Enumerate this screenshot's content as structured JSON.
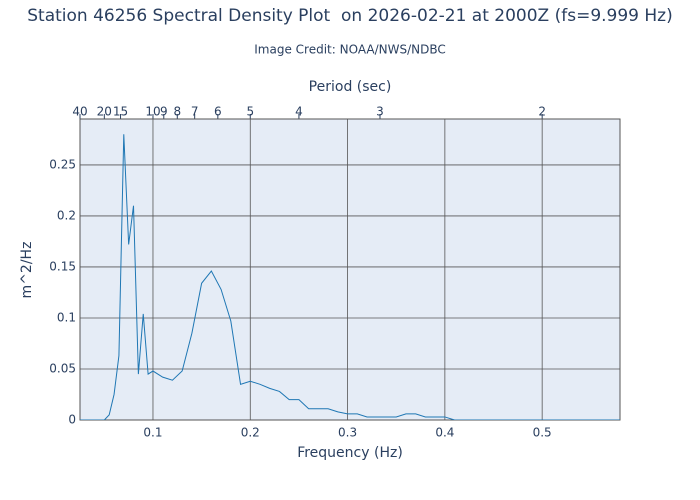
{
  "chart_data": {
    "type": "line",
    "title": "Station 46256 Spectral Density Plot  on 2026-02-21 at 2000Z (fs=9.999 Hz)",
    "subtitle": "Image Credit: NOAA/NWS/NDBC",
    "x_label": "Frequency (Hz)",
    "y_label": "m^2/Hz",
    "x2_label": "Period (sec)",
    "x": [
      0.025,
      0.035,
      0.045,
      0.05,
      0.055,
      0.06,
      0.065,
      0.07,
      0.075,
      0.08,
      0.085,
      0.09,
      0.095,
      0.1,
      0.11,
      0.12,
      0.13,
      0.14,
      0.15,
      0.16,
      0.17,
      0.18,
      0.19,
      0.2,
      0.21,
      0.22,
      0.23,
      0.24,
      0.25,
      0.26,
      0.27,
      0.28,
      0.29,
      0.3,
      0.31,
      0.32,
      0.33,
      0.34,
      0.35,
      0.36,
      0.37,
      0.38,
      0.39,
      0.4,
      0.41,
      0.42,
      0.43,
      0.44,
      0.45,
      0.46,
      0.47,
      0.48,
      0.49,
      0.5,
      0.51,
      0.52,
      0.53,
      0.54,
      0.55,
      0.56,
      0.57,
      0.58
    ],
    "values": [
      0,
      0,
      0,
      0,
      0.005,
      0.025,
      0.063,
      0.28,
      0.172,
      0.21,
      0.045,
      0.104,
      0.045,
      0.048,
      0.042,
      0.039,
      0.048,
      0.085,
      0.134,
      0.146,
      0.128,
      0.097,
      0.035,
      0.038,
      0.035,
      0.031,
      0.028,
      0.02,
      0.02,
      0.011,
      0.011,
      0.011,
      0.008,
      0.006,
      0.006,
      0.003,
      0.003,
      0.003,
      0.003,
      0.006,
      0.006,
      0.003,
      0.003,
      0.003,
      0,
      0,
      0,
      0,
      0,
      0,
      0,
      0,
      0,
      0,
      0,
      0,
      0,
      0,
      0,
      0,
      0,
      0
    ],
    "color": "#1f77b4",
    "xlim": [
      0.025,
      0.58
    ],
    "xticks": [
      0.1,
      0.2,
      0.3,
      0.4,
      0.5
    ],
    "ylim": [
      0,
      0.295
    ],
    "yticks": [
      0,
      0.05,
      0.1,
      0.15,
      0.2,
      0.25
    ],
    "x2scale": "reciprocal",
    "x2ticks": [
      40,
      20,
      15,
      10,
      9,
      8,
      7,
      6,
      5,
      4,
      3,
      2
    ],
    "grid": true
  }
}
